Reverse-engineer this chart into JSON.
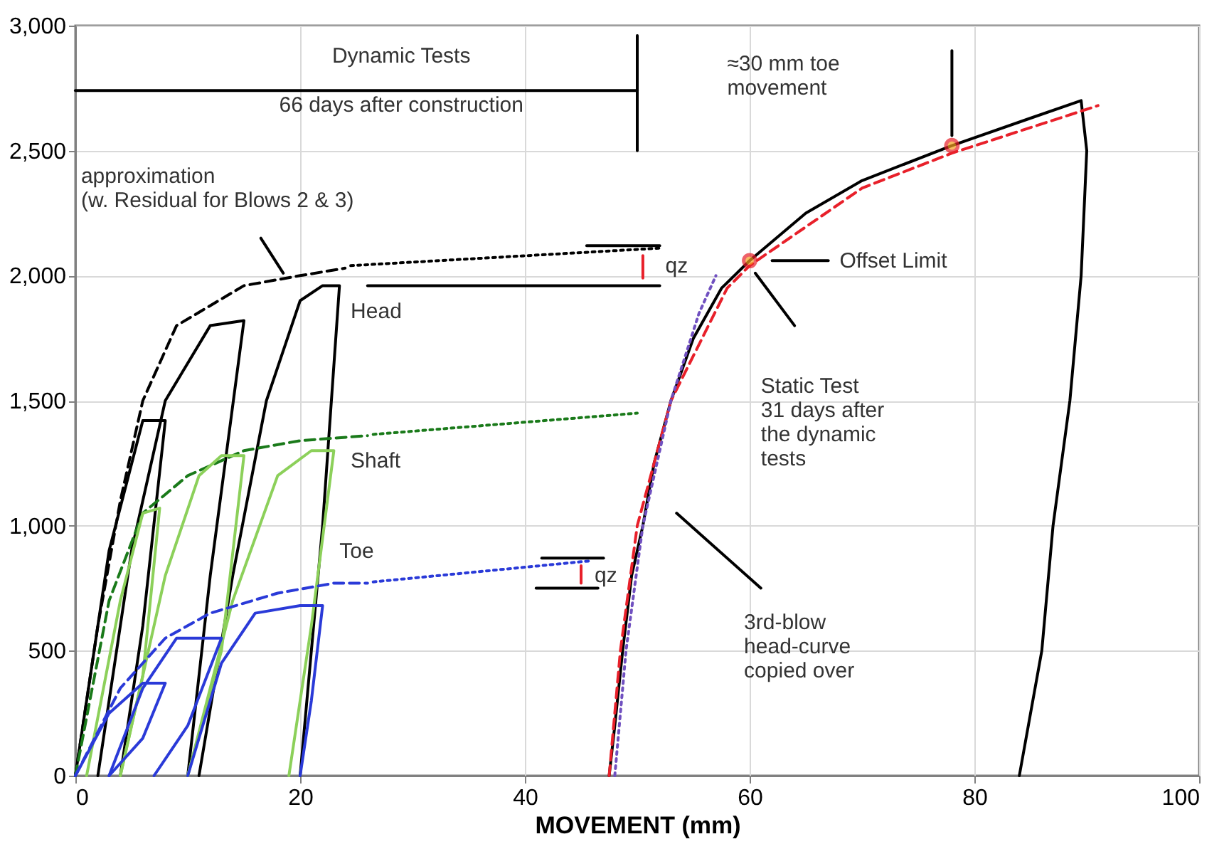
{
  "chart_data": {
    "type": "line",
    "xlabel": "MOVEMENT (mm)",
    "xlim": [
      0,
      100
    ],
    "xticks": [
      0,
      20,
      40,
      60,
      80,
      100
    ],
    "ylim": [
      0,
      3000
    ],
    "yticks": [
      {
        "value": 0,
        "label": "0"
      },
      {
        "value": 500,
        "label": "500"
      },
      {
        "value": 1000,
        "label": "1,000"
      },
      {
        "value": 1500,
        "label": "1,500"
      },
      {
        "value": 2000,
        "label": "2,000"
      },
      {
        "value": 2500,
        "label": "2,500"
      },
      {
        "value": 3000,
        "label": "3,000"
      }
    ],
    "grid": true,
    "series": [
      {
        "color": "#000000",
        "line_style": "solid",
        "x": [
          47.5,
          48,
          48.7,
          49.5,
          50.5,
          51.5,
          53,
          55,
          57.5,
          60,
          65,
          70,
          78,
          85,
          89.5,
          90,
          89.5,
          88.5,
          87,
          86,
          84
        ],
        "values": [
          0,
          200,
          500,
          800,
          1000,
          1250,
          1500,
          1750,
          1950,
          2060,
          2250,
          2380,
          2520,
          2630,
          2700,
          2500,
          2000,
          1500,
          1000,
          500,
          0
        ]
      },
      {
        "color": "#e8202a",
        "line_style": "dashed",
        "x": [
          47.5,
          48.5,
          50,
          53,
          58,
          60,
          70,
          78,
          91
        ],
        "values": [
          0,
          500,
          1000,
          1500,
          1950,
          2040,
          2350,
          2490,
          2680
        ]
      },
      {
        "color": "#7050c0",
        "line_style": "dotted",
        "x": [
          48,
          49,
          50.5,
          53,
          55.5,
          57
        ],
        "values": [
          0,
          500,
          1000,
          1500,
          1850,
          2000
        ]
      },
      {
        "color": "#000000",
        "line_style": "dashed",
        "x": [
          0,
          2,
          4,
          6,
          9,
          15,
          20,
          24
        ],
        "values": [
          0,
          600,
          1100,
          1500,
          1800,
          1960,
          2000,
          2030
        ]
      },
      {
        "color": "#000000",
        "line_style": "solid",
        "x": [
          0,
          3,
          6,
          8,
          6,
          4
        ],
        "values": [
          0,
          900,
          1420,
          1420,
          600,
          0
        ]
      },
      {
        "color": "#000000",
        "line_style": "solid",
        "x": [
          2,
          5,
          8,
          12,
          15,
          12,
          10
        ],
        "values": [
          0,
          900,
          1500,
          1800,
          1820,
          800,
          0
        ]
      },
      {
        "color": "#000000",
        "line_style": "solid",
        "x": [
          11,
          14,
          17,
          20,
          22,
          23.5,
          22,
          20
        ],
        "values": [
          0,
          800,
          1500,
          1900,
          1960,
          1960,
          1000,
          0
        ]
      },
      {
        "color": "#000000",
        "line_style": "dotted",
        "x": [
          24.5,
          52
        ],
        "values": [
          2040,
          2110
        ]
      },
      {
        "color": "#000000",
        "line_style": "solid",
        "x": [
          26,
          52
        ],
        "values": [
          1960,
          1960
        ]
      },
      {
        "color": "#000000",
        "line_style": "solid",
        "x": [
          45.5,
          52
        ],
        "values": [
          2120,
          2120
        ]
      },
      {
        "color": "#e8202a",
        "line_style": "solid",
        "x": [
          50.5,
          50.5
        ],
        "values": [
          1990,
          2080
        ]
      },
      {
        "color": "#1a7a1a",
        "line_style": "dashed",
        "x": [
          0,
          3,
          6,
          10,
          15,
          20,
          26
        ],
        "values": [
          0,
          700,
          1050,
          1200,
          1300,
          1340,
          1360
        ]
      },
      {
        "color": "#1a7a1a",
        "line_style": "dotted",
        "x": [
          26.5,
          50
        ],
        "values": [
          1365,
          1450
        ]
      },
      {
        "color": "#8cd05a",
        "line_style": "solid",
        "x": [
          1,
          4,
          6,
          7.5,
          6,
          4
        ],
        "values": [
          0,
          700,
          1050,
          1070,
          400,
          0
        ]
      },
      {
        "color": "#8cd05a",
        "line_style": "solid",
        "x": [
          4,
          8,
          11,
          13,
          15,
          13,
          10
        ],
        "values": [
          0,
          800,
          1200,
          1280,
          1280,
          500,
          0
        ]
      },
      {
        "color": "#8cd05a",
        "line_style": "solid",
        "x": [
          10,
          14,
          18,
          21,
          23,
          21,
          19
        ],
        "values": [
          0,
          700,
          1200,
          1300,
          1300,
          600,
          0
        ]
      },
      {
        "color": "#2a3ad8",
        "line_style": "dashed",
        "x": [
          0,
          4,
          8,
          12,
          18,
          23,
          26
        ],
        "values": [
          0,
          350,
          550,
          650,
          730,
          770,
          770
        ]
      },
      {
        "color": "#2a3ad8",
        "line_style": "dotted",
        "x": [
          26.5,
          46
        ],
        "values": [
          775,
          860
        ]
      },
      {
        "color": "#2a3ad8",
        "line_style": "solid",
        "x": [
          0,
          3,
          6,
          8,
          6,
          3
        ],
        "values": [
          0,
          250,
          370,
          370,
          150,
          0
        ]
      },
      {
        "color": "#2a3ad8",
        "line_style": "solid",
        "x": [
          3,
          6,
          9,
          13,
          10,
          7
        ],
        "values": [
          0,
          350,
          550,
          550,
          200,
          0
        ]
      },
      {
        "color": "#2a3ad8",
        "line_style": "solid",
        "x": [
          10,
          13,
          16,
          20,
          22,
          21,
          20
        ],
        "values": [
          0,
          450,
          650,
          680,
          680,
          300,
          0
        ]
      },
      {
        "color": "#000000",
        "line_style": "solid",
        "x": [
          41.5,
          47
        ],
        "values": [
          870,
          870
        ]
      },
      {
        "color": "#000000",
        "line_style": "solid",
        "x": [
          41,
          46.5
        ],
        "values": [
          750,
          750
        ]
      },
      {
        "color": "#e8202a",
        "line_style": "solid",
        "x": [
          45,
          45
        ],
        "values": [
          770,
          840
        ]
      },
      {
        "color": "#000000",
        "line_style": "solid",
        "x": [
          0,
          50
        ],
        "values": [
          2740,
          2740
        ]
      },
      {
        "color": "#000000",
        "line_style": "solid",
        "x": [
          50,
          50
        ],
        "values": [
          2500,
          2960
        ]
      },
      {
        "color": "#000000",
        "line_style": "solid",
        "x": [
          78,
          78
        ],
        "values": [
          2900,
          2560
        ]
      },
      {
        "color": "#000000",
        "line_style": "solid",
        "x": [
          67,
          62
        ],
        "values": [
          2060,
          2060
        ]
      },
      {
        "color": "#000000",
        "line_style": "solid",
        "x": [
          64,
          60.5
        ],
        "values": [
          1800,
          2010
        ]
      },
      {
        "color": "#000000",
        "line_style": "solid",
        "x": [
          61,
          53.5
        ],
        "values": [
          750,
          1050
        ]
      },
      {
        "color": "#000000",
        "line_style": "solid",
        "x": [
          16.5,
          18.5
        ],
        "values": [
          2150,
          2010
        ]
      },
      {
        "type": "scatter",
        "color": "#e8202a",
        "marker": "circle",
        "x": [
          60,
          78
        ],
        "values": [
          2060,
          2520
        ]
      }
    ],
    "annotations": [
      "Dynamic Tests",
      "66 days after construction",
      "approximation\n(w. Residual for Blows 2 & 3)",
      "Head",
      "Shaft",
      "Toe",
      "qz",
      "qz",
      "≈30 mm toe\nmovement",
      "Offset Limit",
      "Static Test\n31 days after\nthe dynamic\ntests",
      "3rd-blow\nhead-curve\ncopied over"
    ]
  }
}
